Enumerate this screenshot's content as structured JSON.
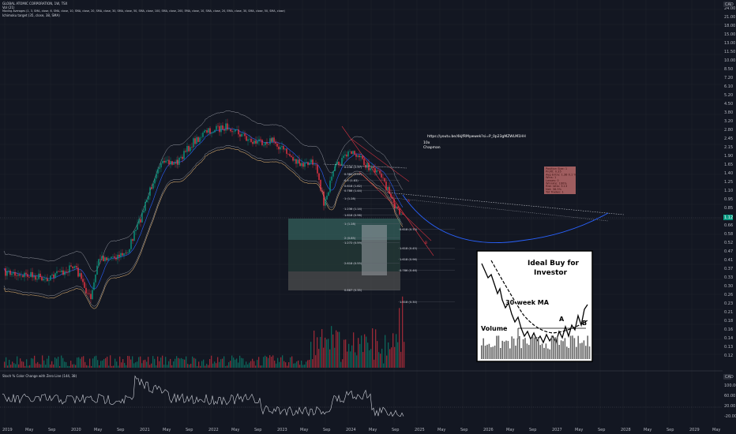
{
  "header": {
    "symbol_line": "GLOBAL ATOMIC CORPORATION, 1W, TSX",
    "indicator_vol": "Vol (21)",
    "indicator_ma": "Moving Averages (1, 3, SMA, close, 6, SMA, close, 10, SMA, close, 20, SMA, close, 30, SMA, close, 50, SMA, close, 100, SMA, close, 200, EMA, close, 10, SMA, close, 20, EMA, close, 30, SMA, close, 50, SMA, close)",
    "indicator_ichimoku": "Ichimoku target (35, close, 38, SMA)"
  },
  "currency": "CAD",
  "price_axis": [
    "24.00",
    "21.00",
    "18.00",
    "15.00",
    "13.00",
    "11.50",
    "10.00",
    "8.50",
    "7.20",
    "6.10",
    "5.20",
    "4.50",
    "3.80",
    "3.20",
    "2.80",
    "2.45",
    "2.15",
    "1.90",
    "1.65",
    "1.40",
    "1.25",
    "1.10",
    "0.95",
    "0.85",
    "0.75",
    "0.66",
    "0.58",
    "0.52",
    "0.47",
    "0.41",
    "0.37",
    "0.33",
    "0.30",
    "0.26",
    "0.23",
    "0.21",
    "0.18",
    "0.16",
    "0.14",
    "0.13",
    "0.12"
  ],
  "last_price": "1.12",
  "time_axis": [
    "2019",
    "May",
    "Sep",
    "2020",
    "May",
    "Sep",
    "2021",
    "May",
    "Sep",
    "2022",
    "May",
    "Sep",
    "2023",
    "May",
    "Sep",
    "2024",
    "May",
    "Sep",
    "2025",
    "May",
    "Sep",
    "2026",
    "May",
    "Sep",
    "2027",
    "May",
    "Sep",
    "2028",
    "May",
    "Sep",
    "2029",
    "May"
  ],
  "lower_panel": {
    "title": "Stoch % Color Change with Zero Line (144, 38)",
    "currency": "CAD",
    "axis": [
      "100.00",
      "60.00",
      "20.00",
      "-20.00"
    ]
  },
  "annotations": {
    "url": "https://youtu.be/4kjfRMywwek?si=P_0p23gMZWLM1HH",
    "tag1": "10x",
    "tag2": "Chapman",
    "letter_a": "A",
    "letter_b": "B"
  },
  "stats_box": [
    "Position Size: 1",
    "Profit: 0.35",
    "Avg Entry: 1.38 0.1 %",
    "Wins: 1",
    "Losses: 0",
    "Winrate: 100%",
    "Risk ratio: 3.13",
    "Net: 38.5%",
    "Tot Trades: 1"
  ],
  "fib_levels": [
    "0.236 (2.37)",
    "0.382 (2.07)",
    "0.5 (1.83)",
    "0.618 (1.62)",
    "0.786 (1.44)",
    "1 (1.28)",
    "1.236 (1.14)",
    "1.618 (0.96)",
    "1 (1.28)",
    "0.618 (0.70)",
    "1.272 (0.59)",
    "1.618 (0.45)",
    "2 (0.85)",
    "1.618 (0.96)",
    "2.618 (0.55)",
    "0.786 (0.46)",
    "0.887 (0.35)",
    "1.618 (0.30)"
  ],
  "ideal_panel": {
    "title_line1": "Ideal Buy for",
    "title_line2": "Investor",
    "ma_label": "30-week MA",
    "volume_label": "Volume",
    "label_a": "A",
    "label_b": "B"
  }
}
